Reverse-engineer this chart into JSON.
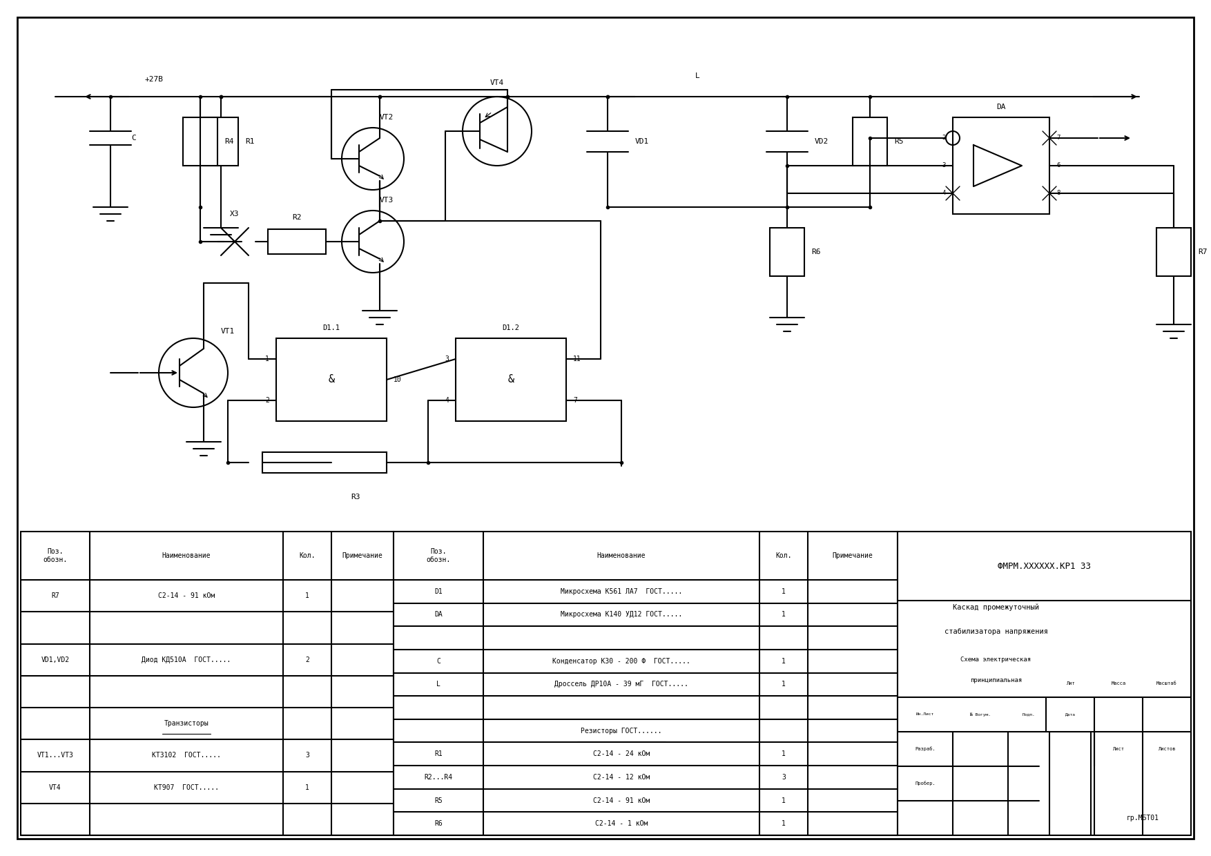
{
  "bg_color": "#ffffff",
  "line_color": "#000000",
  "line_width": 1.5,
  "fig_width": 17.54,
  "fig_height": 12.4,
  "title": "ФМРМ.ХХХХХХ.КР1 ЗЗ",
  "subtitle1": "Каскад промежуточный",
  "subtitle2": "стабилизатора напряжения",
  "subtitle3": "Схема электрическая",
  "subtitle4": "принципиальная",
  "footer": "гр.МБТ01",
  "bom_left": {
    "headers": [
      "Поз.\nобозн.",
      "Наименование",
      "Кол.",
      "Примечание"
    ],
    "rows": [
      [
        "R7",
        "С2-14 - 91 кОм",
        "1",
        ""
      ],
      [
        "",
        "",
        "",
        ""
      ],
      [
        "VD1,VD2",
        "Диод КД510А  ГОСТ.....",
        "2",
        ""
      ],
      [
        "",
        "",
        "",
        ""
      ],
      [
        "",
        "Транзисторы",
        "",
        ""
      ],
      [
        "VT1...VT3",
        "КТ3102  ГОСТ.....",
        "3",
        ""
      ],
      [
        "VT4",
        "КТ907  ГОСТ.....",
        "1",
        ""
      ],
      [
        "",
        "",
        "",
        ""
      ]
    ]
  },
  "bom_right": {
    "headers": [
      "Поз.\nобозн.",
      "Наименование",
      "Кол.",
      "Примечание"
    ],
    "rows": [
      [
        "D1",
        "Микросхема К561 ЛА7  ГОСТ.....",
        "1",
        ""
      ],
      [
        "DA",
        "Микросхема К140 УД12 ГОСТ.....",
        "1",
        ""
      ],
      [
        "",
        "",
        "",
        ""
      ],
      [
        "C",
        "Конденсатор К30 - 200 Ф  ГОСТ.....",
        "1",
        ""
      ],
      [
        "L",
        "Дроссель ДР10А - 39 мГ  ГОСТ.....",
        "1",
        ""
      ],
      [
        "",
        "",
        "",
        ""
      ],
      [
        "",
        "Резисторы ГОСТ......",
        "",
        ""
      ],
      [
        "R1",
        "С2-14 - 24 кОм",
        "1",
        ""
      ],
      [
        "R2...R4",
        "С2-14 - 12 кОм",
        "3",
        ""
      ],
      [
        "R5",
        "С2-14 - 91 кОм",
        "1",
        ""
      ],
      [
        "R6",
        "С2-14 - 1 кОм",
        "1",
        ""
      ]
    ]
  }
}
